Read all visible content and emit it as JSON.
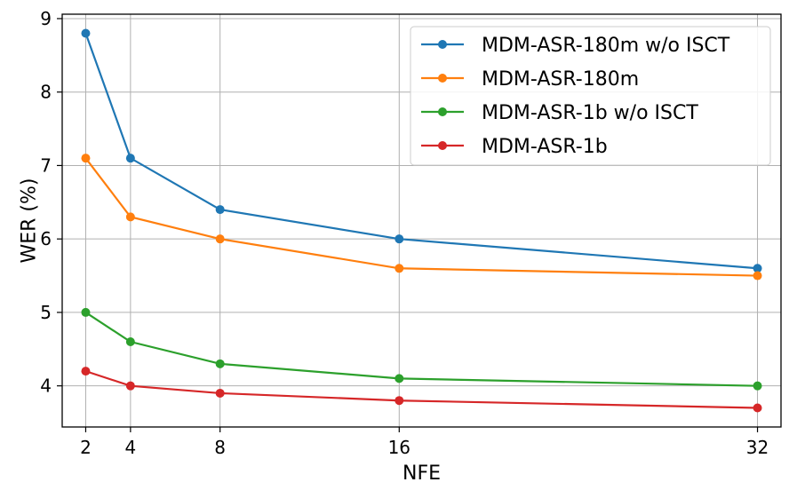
{
  "chart_data": {
    "type": "line",
    "title": "",
    "xlabel": "NFE",
    "ylabel": "WER (%)",
    "x": [
      2,
      4,
      8,
      16,
      32
    ],
    "x_tick_labels": [
      "2",
      "4",
      "8",
      "16",
      "32"
    ],
    "y_ticks": [
      4,
      5,
      6,
      7,
      8,
      9
    ],
    "y_tick_labels": [
      "4",
      "5",
      "6",
      "7",
      "8",
      "9"
    ],
    "xlim": [
      0.95,
      33.05
    ],
    "ylim": [
      3.44,
      9.06
    ],
    "grid": true,
    "legend_position": "top-right",
    "series": [
      {
        "name": "MDM-ASR-180m w/o ISCT",
        "color": "#1f77b4",
        "values": [
          8.8,
          7.1,
          6.4,
          6.0,
          5.6
        ]
      },
      {
        "name": "MDM-ASR-180m",
        "color": "#ff7f0e",
        "values": [
          7.1,
          6.3,
          6.0,
          5.6,
          5.5
        ]
      },
      {
        "name": "MDM-ASR-1b w/o ISCT",
        "color": "#2ca02c",
        "values": [
          5.0,
          4.6,
          4.3,
          4.1,
          4.0
        ]
      },
      {
        "name": "MDM-ASR-1b",
        "color": "#d62728",
        "values": [
          4.2,
          4.0,
          3.9,
          3.8,
          3.7
        ]
      }
    ]
  }
}
